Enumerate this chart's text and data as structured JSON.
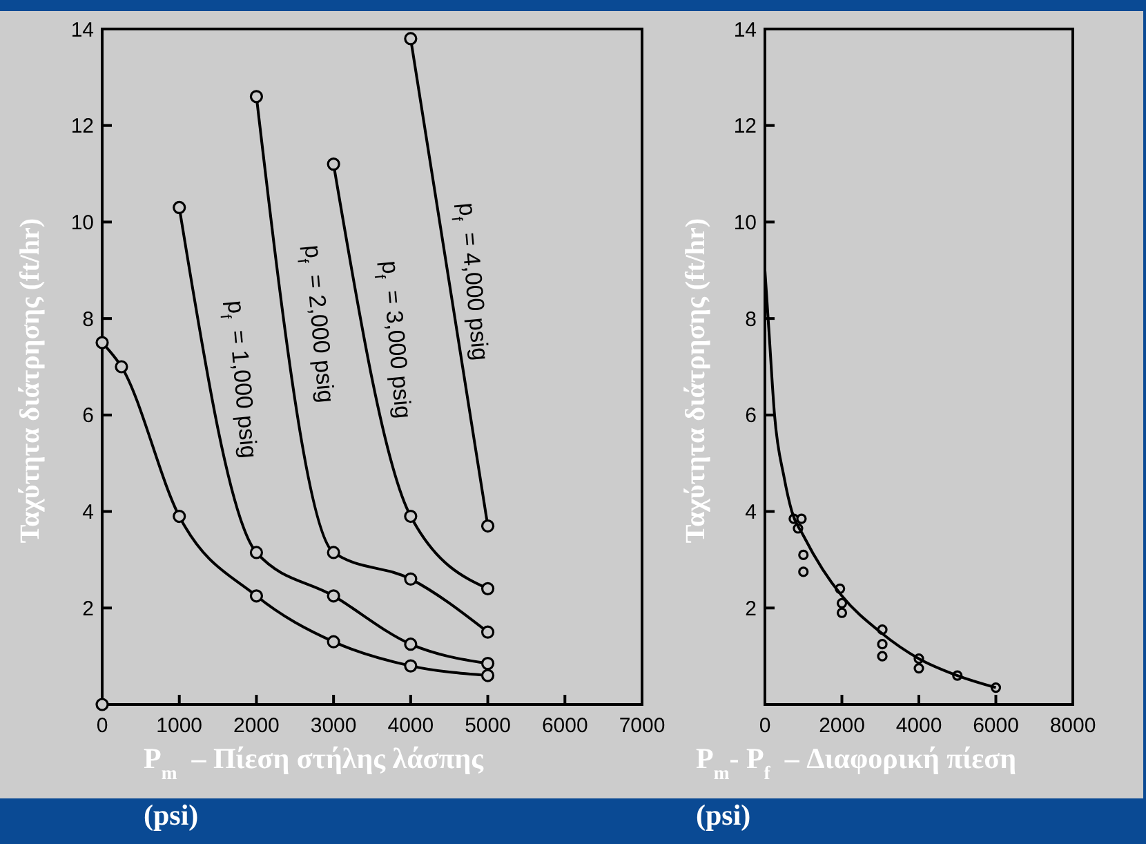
{
  "chart_data": [
    {
      "type": "line",
      "xlabel": "P$_{m}$ – Πίεση στήλης λάσπης (psi)",
      "ylabel": "Ταχύτητα διάτρησης (ft/hr)",
      "xlim": [
        0,
        7000
      ],
      "xticks": [
        0,
        1000,
        2000,
        3000,
        4000,
        5000,
        6000,
        7000
      ],
      "ylim": [
        0,
        14
      ],
      "yticks": [
        2,
        4,
        6,
        8,
        10,
        12,
        14
      ],
      "marker": "circle",
      "series": [
        {
          "color": "#000000",
          "x": [
            0,
            250,
            1000,
            2000,
            3000,
            4000,
            5000
          ],
          "values": [
            7.5,
            7.0,
            3.9,
            2.25,
            1.3,
            0.8,
            0.6
          ]
        },
        {
          "name": "p$_{f}$ = 1,000 psig",
          "color": "#000000",
          "x": [
            1000,
            2000,
            3000,
            4000,
            5000
          ],
          "values": [
            10.3,
            3.15,
            2.25,
            1.25,
            0.85
          ]
        },
        {
          "name": "p$_{f}$ = 2,000 psig",
          "color": "#000000",
          "x": [
            2000,
            3000,
            4000,
            5000
          ],
          "values": [
            12.6,
            3.15,
            2.6,
            1.5
          ]
        },
        {
          "name": "p$_{f}$ = 3,000 psig",
          "color": "#000000",
          "x": [
            3000,
            4000,
            5000
          ],
          "values": [
            11.2,
            3.9,
            2.4
          ]
        },
        {
          "name": "p$_{f}$ = 4,000 psig",
          "color": "#000000",
          "x": [
            4000,
            5000
          ],
          "values": [
            13.8,
            3.7
          ]
        },
        {
          "type": "scatter",
          "color": "#000000",
          "x": [
            0
          ],
          "values": [
            0
          ]
        }
      ]
    },
    {
      "type": "scatter",
      "xlabel": "P$_{m}$- P$_{f}$ – Διαφορική πίεση (psi)",
      "ylabel": "Ταχύτητα διάτρησης (ft/hr)",
      "xlim": [
        0,
        8000
      ],
      "xticks": [
        0,
        2000,
        4000,
        6000,
        8000
      ],
      "ylim": [
        0,
        14
      ],
      "yticks": [
        2,
        4,
        6,
        8,
        10,
        12,
        14
      ],
      "marker": "circle",
      "series": [
        {
          "color": "#000000",
          "x": [
            750,
            950,
            860,
            1000,
            1000,
            1950,
            2000,
            2000,
            3050,
            3050,
            3050,
            4000,
            4000,
            5000,
            6000
          ],
          "values": [
            3.85,
            3.85,
            3.65,
            3.1,
            2.75,
            2.4,
            2.1,
            1.9,
            1.55,
            1.25,
            1.0,
            0.95,
            0.75,
            0.6,
            0.35
          ]
        },
        {
          "type": "line",
          "marker": "none",
          "color": "#000000",
          "x": [
            0,
            100,
            250,
            500,
            700,
            1000,
            1500,
            2000,
            3000,
            4000,
            5000,
            6000
          ],
          "values": [
            9,
            7.8,
            6,
            4.7,
            4.0,
            3.5,
            2.8,
            2.25,
            1.5,
            0.95,
            0.6,
            0.35
          ]
        }
      ]
    }
  ]
}
